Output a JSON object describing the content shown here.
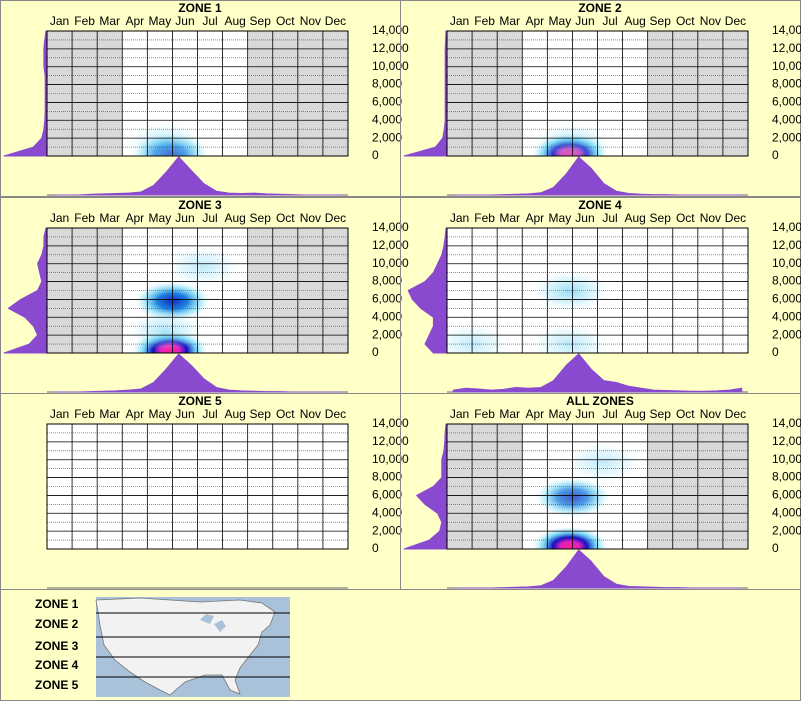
{
  "chart_data": [
    {
      "type": "heatmap",
      "title": "ZONE 1",
      "categories": [
        "Jan",
        "Feb",
        "Mar",
        "Apr",
        "May",
        "Jun",
        "Jul",
        "Aug",
        "Sep",
        "Oct",
        "Nov",
        "Dec"
      ],
      "xlim": [
        0,
        12
      ],
      "ylim": [
        0,
        14000
      ],
      "yticks": [
        0,
        {
          "value": 2000,
          "label": "2,000"
        },
        {
          "value": 4000,
          "label": "4,000"
        },
        {
          "value": 6000,
          "label": "6,000"
        },
        {
          "value": 8000,
          "label": "8,000"
        },
        {
          "value": 10000,
          "label": "10,000"
        },
        {
          "value": 12000,
          "label": "12,000"
        },
        {
          "value": 14000,
          "label": "14,000"
        }
      ],
      "minor_yticks": [
        1000,
        3000,
        5000,
        7000,
        9000,
        11000,
        13000
      ],
      "shaded": [
        true,
        true,
        true,
        false,
        false,
        false,
        false,
        false,
        true,
        true,
        true,
        true
      ],
      "hotspots": [
        {
          "x": 4.9,
          "y": 300,
          "value": 0.6
        },
        {
          "x": 4.7,
          "y": 1500,
          "value": 0.15
        }
      ],
      "x_density": [
        0,
        0,
        0,
        0.02,
        0.03,
        0.04,
        0.05,
        0.08,
        0.25,
        0.6,
        1,
        0.65,
        0.3,
        0.1,
        0.05,
        0.04,
        0.05,
        0.03,
        0.02,
        0.01,
        0,
        0,
        0,
        0
      ],
      "y_density": [
        1,
        0.3,
        0.1,
        0.05,
        0.03,
        0.02,
        0.02,
        0.02,
        0.02,
        0.02,
        0.05,
        0.05,
        0.05,
        0.03,
        0
      ],
      "density_color": "#8a4ad0"
    },
    {
      "type": "heatmap",
      "title": "ZONE 2",
      "categories": [
        "Jan",
        "Feb",
        "Mar",
        "Apr",
        "May",
        "Jun",
        "Jul",
        "Aug",
        "Sep",
        "Oct",
        "Nov",
        "Dec"
      ],
      "xlim": [
        0,
        12
      ],
      "ylim": [
        0,
        14000
      ],
      "yticks": [
        0,
        {
          "value": 2000,
          "label": "2,000"
        },
        {
          "value": 4000,
          "label": "4,000"
        },
        {
          "value": 6000,
          "label": "6,000"
        },
        {
          "value": 8000,
          "label": "8,000"
        },
        {
          "value": 10000,
          "label": "10,000"
        },
        {
          "value": 12000,
          "label": "12,000"
        },
        {
          "value": 14000,
          "label": "14,000"
        }
      ],
      "minor_yticks": [
        1000,
        3000,
        5000,
        7000,
        9000,
        11000,
        13000
      ],
      "shaded": [
        true,
        true,
        true,
        false,
        false,
        false,
        false,
        false,
        true,
        true,
        true,
        true
      ],
      "hotspots": [
        {
          "x": 4.9,
          "y": 300,
          "value": 1.0
        },
        {
          "x": 5.0,
          "y": 1500,
          "value": 0.15
        }
      ],
      "x_density": [
        0,
        0,
        0,
        0,
        0.01,
        0.02,
        0.03,
        0.06,
        0.2,
        0.55,
        1,
        0.7,
        0.3,
        0.1,
        0.04,
        0.02,
        0.01,
        0.01,
        0,
        0,
        0,
        0,
        0,
        0
      ],
      "y_density": [
        1,
        0.25,
        0.08,
        0.04,
        0.02,
        0.02,
        0.02,
        0.02,
        0.02,
        0.02,
        0.02,
        0.02,
        0.02,
        0.01,
        0
      ],
      "density_color": "#8a4ad0"
    },
    {
      "type": "heatmap",
      "title": "ZONE 3",
      "categories": [
        "Jan",
        "Feb",
        "Mar",
        "Apr",
        "May",
        "Jun",
        "Jul",
        "Aug",
        "Sep",
        "Oct",
        "Nov",
        "Dec"
      ],
      "xlim": [
        0,
        12
      ],
      "ylim": [
        0,
        14000
      ],
      "yticks": [
        0,
        {
          "value": 2000,
          "label": "2,000"
        },
        {
          "value": 4000,
          "label": "4,000"
        },
        {
          "value": 6000,
          "label": "6,000"
        },
        {
          "value": 8000,
          "label": "8,000"
        },
        {
          "value": 10000,
          "label": "10,000"
        },
        {
          "value": 12000,
          "label": "12,000"
        },
        {
          "value": 14000,
          "label": "14,000"
        }
      ],
      "minor_yticks": [
        1000,
        3000,
        5000,
        7000,
        9000,
        11000,
        13000
      ],
      "shaded": [
        true,
        true,
        true,
        false,
        false,
        false,
        false,
        false,
        true,
        true,
        true,
        true
      ],
      "hotspots": [
        {
          "x": 4.9,
          "y": 300,
          "value": 1.0
        },
        {
          "x": 5.0,
          "y": 5800,
          "value": 0.7
        },
        {
          "x": 6.2,
          "y": 9700,
          "value": 0.1
        },
        {
          "x": 4.7,
          "y": 2500,
          "value": 0.2
        }
      ],
      "x_density": [
        0,
        0,
        0,
        0.01,
        0.02,
        0.03,
        0.05,
        0.08,
        0.25,
        0.6,
        1,
        0.7,
        0.35,
        0.12,
        0.05,
        0.03,
        0.02,
        0.01,
        0.01,
        0,
        0,
        0,
        0,
        0
      ],
      "y_density": [
        1,
        0.4,
        0.2,
        0.3,
        0.5,
        0.9,
        0.6,
        0.2,
        0.1,
        0.15,
        0.2,
        0.1,
        0.05,
        0.05,
        0
      ],
      "density_color": "#8a4ad0"
    },
    {
      "type": "heatmap",
      "title": "ZONE 4",
      "categories": [
        "Jan",
        "Feb",
        "Mar",
        "Apr",
        "May",
        "Jun",
        "Jul",
        "Aug",
        "Sep",
        "Oct",
        "Nov",
        "Dec"
      ],
      "xlim": [
        0,
        12
      ],
      "ylim": [
        0,
        14000
      ],
      "yticks": [
        0,
        {
          "value": 2000,
          "label": "2,000"
        },
        {
          "value": 4000,
          "label": "4,000"
        },
        {
          "value": 6000,
          "label": "6,000"
        },
        {
          "value": 8000,
          "label": "8,000"
        },
        {
          "value": 10000,
          "label": "10,000"
        },
        {
          "value": 12000,
          "label": "12,000"
        },
        {
          "value": 14000,
          "label": "14,000"
        }
      ],
      "minor_yticks": [
        1000,
        3000,
        5000,
        7000,
        9000,
        11000,
        13000
      ],
      "shaded": [
        false,
        false,
        false,
        false,
        false,
        false,
        false,
        false,
        false,
        false,
        false,
        false
      ],
      "hotspots": [
        {
          "x": 4.9,
          "y": 6900,
          "value": 0.35
        },
        {
          "x": 4.9,
          "y": 1000,
          "value": 0.15
        },
        {
          "x": 1.0,
          "y": 1000,
          "value": 0.1
        }
      ],
      "x_density": [
        0.05,
        0.1,
        0.08,
        0.05,
        0.07,
        0.12,
        0.1,
        0.12,
        0.3,
        0.7,
        1,
        0.6,
        0.3,
        0.25,
        0.15,
        0.1,
        0.05,
        0.04,
        0.03,
        0.02,
        0.02,
        0.03,
        0.05,
        0.1
      ],
      "y_density": [
        0.3,
        0.5,
        0.4,
        0.3,
        0.3,
        0.6,
        0.8,
        0.9,
        0.5,
        0.3,
        0.2,
        0.1,
        0.05,
        0.02,
        0
      ],
      "density_color": "#8a4ad0"
    },
    {
      "type": "heatmap",
      "title": "ZONE 5",
      "categories": [
        "Jan",
        "Feb",
        "Mar",
        "Apr",
        "May",
        "Jun",
        "Jul",
        "Aug",
        "Sep",
        "Oct",
        "Nov",
        "Dec"
      ],
      "xlim": [
        0,
        12
      ],
      "ylim": [
        0,
        14000
      ],
      "yticks": [
        0,
        {
          "value": 2000,
          "label": "2,000"
        },
        {
          "value": 4000,
          "label": "4,000"
        },
        {
          "value": 6000,
          "label": "6,000"
        },
        {
          "value": 8000,
          "label": "8,000"
        },
        {
          "value": 10000,
          "label": "10,000"
        },
        {
          "value": 12000,
          "label": "12,000"
        },
        {
          "value": 14000,
          "label": "14,000"
        }
      ],
      "minor_yticks": [
        1000,
        3000,
        5000,
        7000,
        9000,
        11000,
        13000
      ],
      "shaded": [
        false,
        false,
        false,
        false,
        false,
        false,
        false,
        false,
        false,
        false,
        false,
        false
      ],
      "hotspots": [],
      "x_density": [],
      "y_density": [],
      "density_color": "#8a4ad0"
    },
    {
      "type": "heatmap",
      "title": "ALL ZONES",
      "categories": [
        "Jan",
        "Feb",
        "Mar",
        "Apr",
        "May",
        "Jun",
        "Jul",
        "Aug",
        "Sep",
        "Oct",
        "Nov",
        "Dec"
      ],
      "xlim": [
        0,
        12
      ],
      "ylim": [
        0,
        14000
      ],
      "yticks": [
        0,
        {
          "value": 2000,
          "label": "2,000"
        },
        {
          "value": 4000,
          "label": "4,000"
        },
        {
          "value": 6000,
          "label": "6,000"
        },
        {
          "value": 8000,
          "label": "8,000"
        },
        {
          "value": 10000,
          "label": "10,000"
        },
        {
          "value": 12000,
          "label": "12,000"
        },
        {
          "value": 14000,
          "label": "14,000"
        }
      ],
      "minor_yticks": [
        1000,
        3000,
        5000,
        7000,
        9000,
        11000,
        13000
      ],
      "shaded": [
        true,
        true,
        true,
        false,
        false,
        false,
        false,
        false,
        true,
        true,
        true,
        true
      ],
      "hotspots": [
        {
          "x": 4.9,
          "y": 300,
          "value": 1.0
        },
        {
          "x": 5.0,
          "y": 5800,
          "value": 0.5
        },
        {
          "x": 6.2,
          "y": 9700,
          "value": 0.1
        }
      ],
      "x_density": [
        0,
        0,
        0,
        0,
        0.01,
        0.02,
        0.03,
        0.06,
        0.2,
        0.55,
        1,
        0.7,
        0.3,
        0.1,
        0.04,
        0.03,
        0.02,
        0.01,
        0.01,
        0,
        0,
        0,
        0,
        0
      ],
      "y_density": [
        1,
        0.4,
        0.15,
        0.1,
        0.2,
        0.5,
        0.7,
        0.3,
        0.1,
        0.1,
        0.1,
        0.05,
        0.03,
        0.02,
        0
      ],
      "density_color": "#8a4ad0"
    }
  ],
  "legend": {
    "zones": [
      "ZONE 1",
      "ZONE 2",
      "ZONE 3",
      "ZONE 4",
      "ZONE 5"
    ]
  }
}
